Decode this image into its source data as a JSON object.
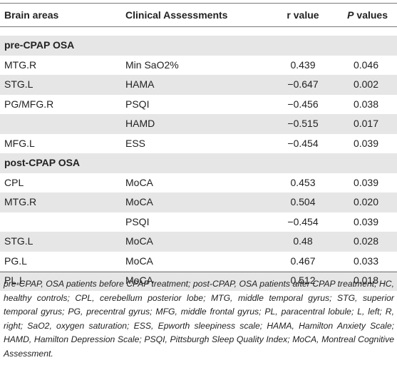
{
  "table": {
    "headers": {
      "brain_areas": "Brain areas",
      "clinical_assessments": "Clinical Assessments",
      "r_value": "r value",
      "p_letter": "P",
      "p_rest": " values"
    },
    "rows": [
      {
        "type": "group",
        "area": "pre-CPAP OSA",
        "assessment": "",
        "r": "",
        "p": ""
      },
      {
        "type": "data",
        "area": "MTG.R",
        "assessment": "Min SaO2%",
        "r": "0.439",
        "p": "0.046"
      },
      {
        "type": "data",
        "area": "STG.L",
        "assessment": "HAMA",
        "r": "−0.647",
        "p": "0.002"
      },
      {
        "type": "data",
        "area": "PG/MFG.R",
        "assessment": "PSQI",
        "r": "−0.456",
        "p": "0.038"
      },
      {
        "type": "data",
        "area": "",
        "assessment": "HAMD",
        "r": "−0.515",
        "p": "0.017"
      },
      {
        "type": "data",
        "area": "MFG.L",
        "assessment": "ESS",
        "r": "−0.454",
        "p": "0.039"
      },
      {
        "type": "group",
        "area": "post-CPAP OSA",
        "assessment": "",
        "r": "",
        "p": ""
      },
      {
        "type": "data",
        "area": "CPL",
        "assessment": "MoCA",
        "r": "0.453",
        "p": "0.039"
      },
      {
        "type": "data",
        "area": "MTG.R",
        "assessment": "MoCA",
        "r": "0.504",
        "p": "0.020"
      },
      {
        "type": "data",
        "area": "",
        "assessment": "PSQI",
        "r": "−0.454",
        "p": "0.039"
      },
      {
        "type": "data",
        "area": "STG.L",
        "assessment": "MoCA",
        "r": "0.48",
        "p": "0.028"
      },
      {
        "type": "data",
        "area": "PG.L",
        "assessment": "MoCA",
        "r": "0.467",
        "p": "0.033"
      },
      {
        "type": "data",
        "area": "PL.L",
        "assessment": "MoCA",
        "r": "0.512",
        "p": "0.018"
      }
    ]
  },
  "footnote": "pre-CPAP, OSA patients before CPAP treatment; post-CPAP, OSA patients after CPAP treatment; HC, healthy controls; CPL, cerebellum posterior lobe; MTG, middle temporal gyrus; STG, superior temporal gyrus; PG, precentral gyrus; MFG, middle frontal gyrus; PL, paracentral lobule; L, left; R, right; SaO2, oxygen saturation; ESS, Epworth sleepiness scale; HAMA, Hamilton Anxiety Scale; HAMD, Hamilton Depression Scale; PSQI, Pittsburgh Sleep Quality Index; MoCA, Montreal Cognitive Assessment."
}
